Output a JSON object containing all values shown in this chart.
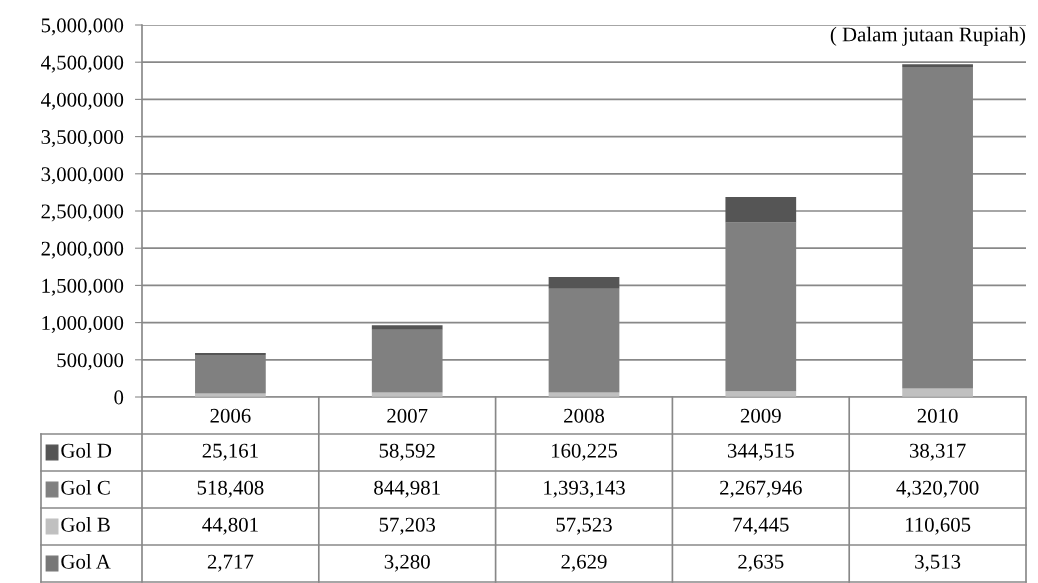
{
  "chart_data": {
    "type": "bar",
    "stacked": true,
    "legend": "bottom left",
    "grid": "y",
    "categories": [
      "2006",
      "2007",
      "2008",
      "2009",
      "2010"
    ],
    "series": [
      {
        "name": "Gol A",
        "color": "#777777",
        "values": [
          2717,
          3280,
          2629,
          2635,
          3513
        ],
        "value_labels": [
          "2,717",
          "3,280",
          "2,629",
          "2,635",
          "3,513"
        ]
      },
      {
        "name": "Gol B",
        "color": "#c0c0c0",
        "values": [
          44801,
          57203,
          57523,
          74445,
          110605
        ],
        "value_labels": [
          "44,801",
          "57,203",
          "57,523",
          "74,445",
          "110,605"
        ]
      },
      {
        "name": "Gol C",
        "color": "#808080",
        "values": [
          518408,
          844981,
          1393143,
          2267946,
          4320700
        ],
        "value_labels": [
          "518,408",
          "844,981",
          "1,393,143",
          "2,267,946",
          "4,320,700"
        ]
      },
      {
        "name": "Gol D",
        "color": "#555555",
        "values": [
          25161,
          58592,
          160225,
          344515,
          38317
        ],
        "value_labels": [
          "25,161",
          "58,592",
          "160,225",
          "344,515",
          "38,317"
        ]
      }
    ],
    "ylim": [
      0,
      5000000
    ],
    "yticks": [
      {
        "value": 0,
        "label": "0"
      },
      {
        "value": 500000,
        "label": "500,000"
      },
      {
        "value": 1000000,
        "label": "1,000,000"
      },
      {
        "value": 1500000,
        "label": "1,500,000"
      },
      {
        "value": 2000000,
        "label": "2,000,000"
      },
      {
        "value": 2500000,
        "label": "2,500,000"
      },
      {
        "value": 3000000,
        "label": "3,000,000"
      },
      {
        "value": 3500000,
        "label": "3,500,000"
      },
      {
        "value": 4000000,
        "label": "4,000,000"
      },
      {
        "value": 4500000,
        "label": "4,500,000"
      },
      {
        "value": 5000000,
        "label": "5,000,000"
      }
    ],
    "annotations": [
      "( Dalam jutaan Rupiah)"
    ]
  }
}
